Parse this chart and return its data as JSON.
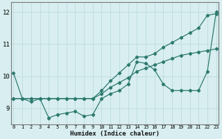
{
  "xlabel": "Humidex (Indice chaleur)",
  "x": [
    0,
    1,
    2,
    3,
    4,
    5,
    6,
    7,
    8,
    9,
    10,
    11,
    12,
    13,
    14,
    15,
    16,
    17,
    18,
    19,
    20,
    21,
    22,
    23
  ],
  "line_jagged": [
    10.1,
    9.3,
    9.2,
    9.3,
    8.7,
    8.8,
    8.85,
    8.9,
    8.75,
    8.8,
    9.3,
    9.45,
    9.55,
    9.75,
    10.45,
    10.4,
    10.2,
    9.75,
    9.55,
    9.55,
    9.55,
    9.55,
    10.15,
    12.0
  ],
  "line_upper": [
    9.3,
    9.3,
    9.3,
    9.3,
    9.3,
    9.3,
    9.3,
    9.3,
    9.3,
    9.3,
    9.55,
    9.85,
    10.1,
    10.35,
    10.6,
    10.6,
    10.7,
    10.9,
    11.05,
    11.2,
    11.35,
    11.5,
    11.9,
    11.95
  ],
  "line_lower": [
    9.3,
    9.3,
    9.3,
    9.3,
    9.3,
    9.3,
    9.3,
    9.3,
    9.3,
    9.3,
    9.45,
    9.65,
    9.8,
    9.95,
    10.15,
    10.25,
    10.35,
    10.45,
    10.55,
    10.65,
    10.7,
    10.75,
    10.8,
    10.85
  ],
  "color": "#2d7a6e",
  "bg_color": "#d8eef0",
  "grid_color": "#c0dde0",
  "ylim": [
    8.5,
    12.3
  ],
  "xlim": [
    -0.3,
    23.3
  ],
  "yticks": [
    9,
    10,
    11,
    12
  ],
  "xticks": [
    0,
    1,
    2,
    3,
    4,
    5,
    6,
    7,
    8,
    9,
    10,
    11,
    12,
    13,
    14,
    15,
    16,
    17,
    18,
    19,
    20,
    21,
    22,
    23
  ]
}
